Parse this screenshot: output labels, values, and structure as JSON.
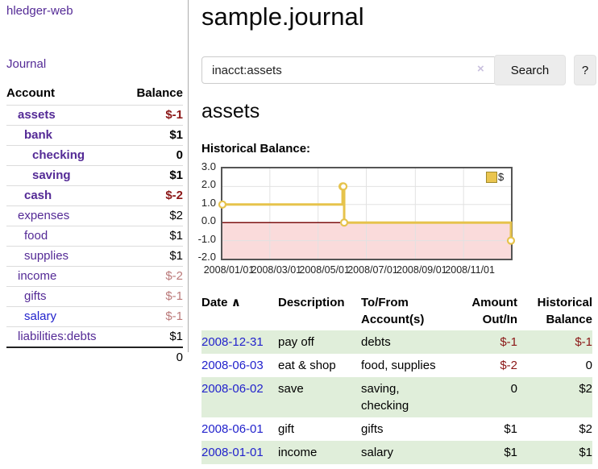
{
  "app": {
    "brand": "hledger-web",
    "nav_journal": "Journal"
  },
  "sidebar": {
    "account_header": "Account",
    "balance_header": "Balance",
    "rows": [
      {
        "account": "assets",
        "balance": "$-1"
      },
      {
        "account": "bank",
        "balance": "$1"
      },
      {
        "account": "checking",
        "balance": "0"
      },
      {
        "account": "saving",
        "balance": "$1"
      },
      {
        "account": "cash",
        "balance": "$-2"
      },
      {
        "account": "expenses",
        "balance": "$2"
      },
      {
        "account": "food",
        "balance": "$1"
      },
      {
        "account": "supplies",
        "balance": "$1"
      },
      {
        "account": "income",
        "balance": "$-2"
      },
      {
        "account": "gifts",
        "balance": "$-1"
      },
      {
        "account": "salary",
        "balance": "$-1"
      },
      {
        "account": "liabilities:debts",
        "balance": "$1"
      }
    ],
    "total": "0"
  },
  "main": {
    "title": "sample.journal",
    "search": {
      "value": "inacct:assets",
      "clear": "×",
      "search_button": "Search",
      "help_button": "?"
    },
    "heading": "assets",
    "chart_title": "Historical Balance:"
  },
  "chart_data": {
    "type": "line",
    "step": true,
    "title": "Historical Balance:",
    "series": [
      {
        "name": "$",
        "points": [
          {
            "date": "2008-01-01",
            "value": 1
          },
          {
            "date": "2008-06-01",
            "value": 2
          },
          {
            "date": "2008-06-02",
            "value": 2
          },
          {
            "date": "2008-06-03",
            "value": 0
          },
          {
            "date": "2008-12-31",
            "value": -1
          }
        ]
      }
    ],
    "ylim": [
      -2,
      3
    ],
    "yticks": [
      "3.0",
      "2.0",
      "1.0",
      "0.0",
      "-1.0",
      "-2.0"
    ],
    "xrange": [
      "2008-01-01",
      "2008-12-31"
    ],
    "xticks": [
      "2008/01/01",
      "2008/03/01",
      "2008/05/01",
      "2008/07/01",
      "2008/09/01",
      "2008/11/01"
    ],
    "legend": {
      "label": "$",
      "position": "top-right"
    },
    "grid": true,
    "colors": {
      "line": "#e6c34c",
      "marker_fill": "#ffffff",
      "negative_fill": "#fadbdb",
      "zero_line": "#7d1111",
      "grid": "#e2e2e2",
      "border": "#555555"
    }
  },
  "register": {
    "headers": {
      "date": "Date",
      "sort_caret": "∧",
      "description": "Description",
      "account_line1": "To/From",
      "account_line2": "Account(s)",
      "amount_line1": "Amount",
      "amount_line2": "Out/In",
      "balance_line1": "Historical",
      "balance_line2": "Balance"
    },
    "rows": [
      {
        "date": "2008-12-31",
        "description": "pay off",
        "accounts": "debts",
        "amount": "$-1",
        "balance": "$-1"
      },
      {
        "date": "2008-06-03",
        "description": "eat & shop",
        "accounts": "food, supplies",
        "amount": "$-2",
        "balance": "0"
      },
      {
        "date": "2008-06-02",
        "description": "save",
        "accounts": "saving, checking",
        "amount": "0",
        "balance": "$2"
      },
      {
        "date": "2008-06-01",
        "description": "gift",
        "accounts": "gifts",
        "amount": "$1",
        "balance": "$2"
      },
      {
        "date": "2008-01-01",
        "description": "income",
        "accounts": "salary",
        "amount": "$1",
        "balance": "$1"
      }
    ]
  },
  "colors": {
    "link_purple": "#542a96",
    "link_blue": "#2222cc",
    "negative_dark": "#8b1717",
    "negative_pale": "#bb7a7a",
    "row_stripe_green": "#e0eeda",
    "accent_gold": "#e6c34c"
  }
}
